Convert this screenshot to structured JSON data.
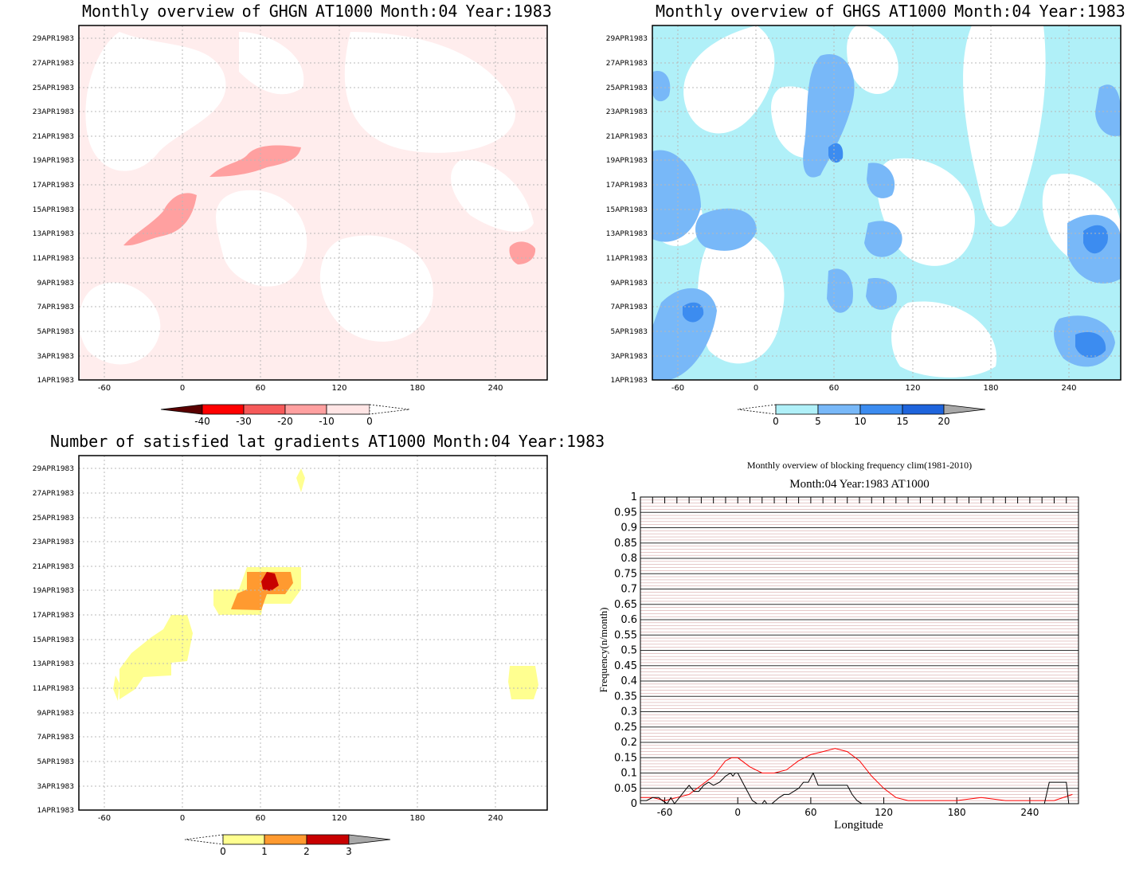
{
  "panels": {
    "ghgn": {
      "title_words": [
        "Monthly",
        "overview",
        "of",
        "GHGN",
        "AT1000",
        "Month:04",
        "Year:1983"
      ],
      "colorbar": {
        "labels": [
          "-40",
          "-30",
          "-20",
          "-10",
          "0"
        ],
        "colors": [
          "#5a0000",
          "#ff0000",
          "#f65a5a",
          "#ffa0a0",
          "#ffe5e5"
        ]
      }
    },
    "ghgs": {
      "title_words": [
        "Monthly",
        "overview",
        "of",
        "GHGS",
        "AT1000",
        "Month:04",
        "Year:1983"
      ],
      "colorbar": {
        "labels": [
          "0",
          "5",
          "10",
          "15",
          "20"
        ],
        "colors": [
          "#b0f0f8",
          "#78b8f8",
          "#3c8cf0",
          "#1e64dc",
          "#a8a8a8"
        ]
      }
    },
    "gradients": {
      "title_words": [
        "Number",
        "of",
        "satisfied",
        "lat",
        "gradients",
        "AT1000",
        "Month:04",
        "Year:1983"
      ],
      "colorbar": {
        "labels": [
          "0",
          "1",
          "2",
          "3"
        ],
        "colors": [
          "#ffff90",
          "#ff9a30",
          "#c80000",
          "#a8a8a8"
        ]
      }
    }
  },
  "y_ticks": [
    "29APR1983",
    "27APR1983",
    "25APR1983",
    "23APR1983",
    "21APR1983",
    "19APR1983",
    "17APR1983",
    "15APR1983",
    "13APR1983",
    "11APR1983",
    "9APR1983",
    "7APR1983",
    "5APR1983",
    "3APR1983",
    "1APR1983"
  ],
  "x_ticks": [
    "-60",
    "0",
    "60",
    "120",
    "180",
    "240"
  ],
  "chart_data": {
    "type": "line",
    "title": "Monthly overview of blocking frequency clim(1981-2010)",
    "subtitle": "Month:04 Year:1983  AT1000",
    "xlabel": "Longitude",
    "ylabel": "Frequency(n/month)",
    "xlim": [
      -80,
      280
    ],
    "ylim": [
      0,
      1
    ],
    "x_ticks": [
      "-60",
      "0",
      "60",
      "120",
      "180",
      "240"
    ],
    "y_ticks": [
      "0",
      "0.05",
      "0.1",
      "0.15",
      "0.2",
      "0.25",
      "0.3",
      "0.35",
      "0.4",
      "0.45",
      "0.5",
      "0.55",
      "0.6",
      "0.65",
      "0.7",
      "0.75",
      "0.8",
      "0.85",
      "0.9",
      "0.95",
      "1"
    ],
    "grid": true,
    "colors": {
      "climatology": "#ff0000",
      "year": "#000000"
    },
    "series": [
      {
        "x": [
          -80,
          -70,
          -60,
          -50,
          -40,
          -30,
          -20,
          -10,
          -5,
          0,
          10,
          20,
          30,
          40,
          50,
          60,
          70,
          80,
          90,
          100,
          110,
          120,
          130,
          140,
          160,
          180,
          200,
          220,
          240,
          260,
          275
        ],
        "values": [
          0.02,
          0.02,
          0.01,
          0.02,
          0.03,
          0.06,
          0.09,
          0.14,
          0.15,
          0.15,
          0.12,
          0.1,
          0.1,
          0.11,
          0.14,
          0.16,
          0.17,
          0.18,
          0.17,
          0.14,
          0.09,
          0.05,
          0.02,
          0.01,
          0.01,
          0.01,
          0.02,
          0.01,
          0.01,
          0.01,
          0.03
        ]
      },
      {
        "x": [
          -80,
          -75,
          -70,
          -65,
          -62,
          -58,
          -55,
          -52,
          -48,
          -44,
          -40,
          -36,
          -32,
          -28,
          -24,
          -20,
          -15,
          -10,
          -6,
          -4,
          -2,
          0,
          4,
          8,
          12,
          16,
          20,
          22,
          24,
          28,
          34,
          38,
          42,
          46,
          50,
          54,
          58,
          62,
          66,
          70,
          74,
          78,
          82,
          86,
          90,
          94,
          98,
          102,
          106,
          110,
          120,
          150,
          180,
          210,
          240,
          248,
          252,
          256,
          262,
          268,
          270,
          272,
          276
        ],
        "values": [
          0.01,
          0.01,
          0.02,
          0.02,
          0.01,
          0.0,
          0.02,
          0.0,
          0.02,
          0.04,
          0.06,
          0.04,
          0.04,
          0.06,
          0.07,
          0.06,
          0.07,
          0.09,
          0.1,
          0.09,
          0.1,
          0.1,
          0.07,
          0.04,
          0.01,
          0.0,
          0.0,
          0.01,
          0.0,
          0.0,
          0.02,
          0.03,
          0.03,
          0.04,
          0.05,
          0.07,
          0.07,
          0.1,
          0.06,
          0.06,
          0.06,
          0.06,
          0.06,
          0.06,
          0.06,
          0.03,
          0.01,
          0.0,
          0.0,
          0.0,
          0.0,
          0.0,
          0.0,
          0.0,
          0.0,
          0.0,
          0.0,
          0.07,
          0.07,
          0.07,
          0.07,
          0.0,
          0.0
        ]
      }
    ]
  }
}
